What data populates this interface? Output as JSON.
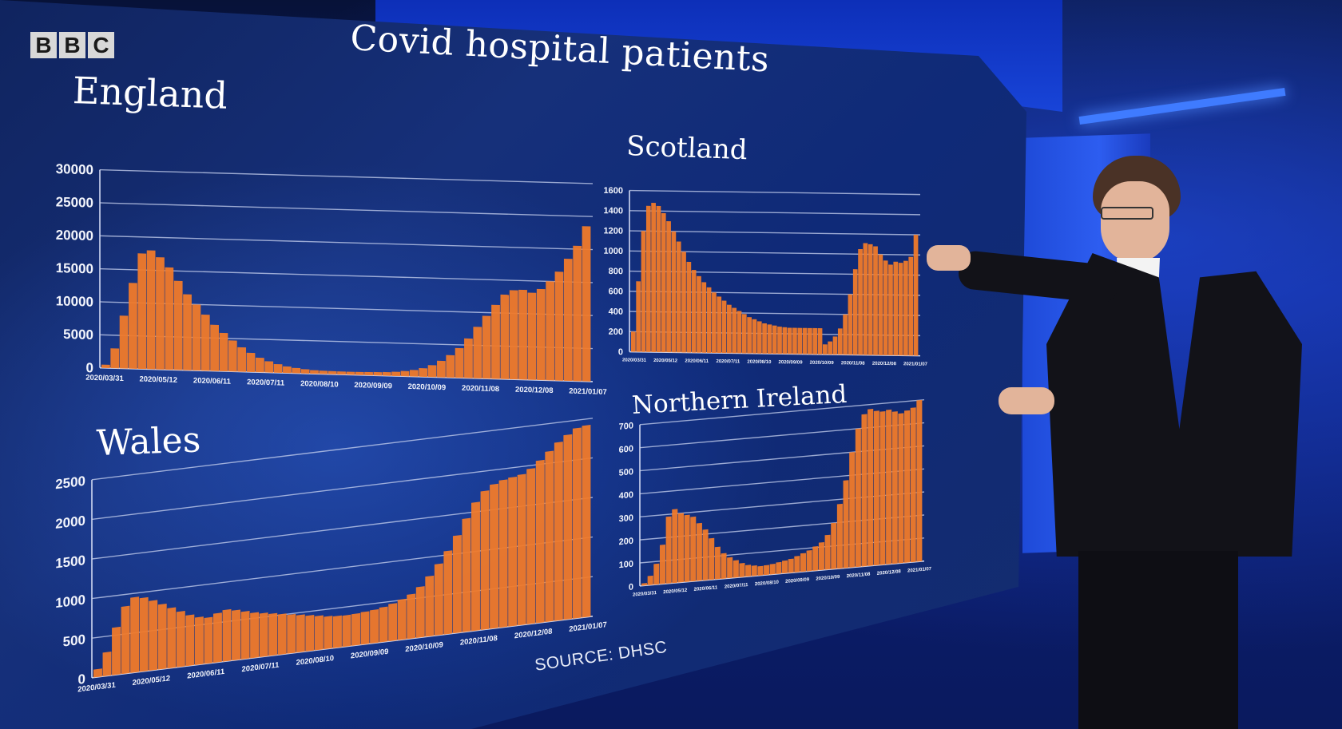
{
  "broadcaster": {
    "logo_letters": [
      "B",
      "B",
      "C"
    ]
  },
  "title": "Covid hospital patients",
  "source": "SOURCE: DHSC",
  "colors": {
    "bars": "#f07a2a",
    "screen_background": "#142c6e",
    "text": "#ffffff"
  },
  "chart_data": [
    {
      "type": "bar",
      "title": "England",
      "x_tick_labels": [
        "2020/03/31",
        "2020/05/12",
        "2020/06/11",
        "2020/07/11",
        "2020/08/10",
        "2020/09/09",
        "2020/10/09",
        "2020/11/08",
        "2020/12/08",
        "2021/01/07"
      ],
      "y_tick_labels": [
        "0",
        "5000",
        "10000",
        "15000",
        "20000",
        "25000",
        "30000"
      ],
      "ylim": [
        0,
        30000
      ],
      "grid": true,
      "series": [
        {
          "values": [
            500,
            3000,
            8000,
            13000,
            17500,
            18000,
            17000,
            15500,
            13500,
            11500,
            10000,
            8500,
            7000,
            5800,
            4700,
            3700,
            2900,
            2200,
            1700,
            1300,
            1000,
            800,
            650,
            550,
            500,
            480,
            470,
            460,
            470,
            490,
            520,
            560,
            650,
            800,
            1000,
            1300,
            1800,
            2500,
            3400,
            4500,
            6000,
            7800,
            9500,
            11200,
            12800,
            13500,
            13600,
            13200,
            13800,
            15000,
            16500,
            18500,
            20500,
            23500
          ]
        }
      ]
    },
    {
      "type": "bar",
      "title": "Scotland",
      "x_tick_labels": [
        "2020/03/31",
        "2020/05/12",
        "2020/06/11",
        "2020/07/11",
        "2020/08/10",
        "2020/09/09",
        "2020/10/09",
        "2020/11/08",
        "2020/12/08",
        "2021/01/07"
      ],
      "y_tick_labels": [
        "0",
        "200",
        "400",
        "600",
        "800",
        "1000",
        "1200",
        "1400",
        "1600"
      ],
      "ylim": [
        0,
        1600
      ],
      "grid": true,
      "series": [
        {
          "values": [
            200,
            700,
            1200,
            1450,
            1480,
            1450,
            1380,
            1300,
            1200,
            1100,
            1000,
            900,
            820,
            760,
            700,
            650,
            600,
            560,
            520,
            480,
            450,
            420,
            390,
            360,
            340,
            320,
            300,
            290,
            280,
            270,
            265,
            260,
            260,
            260,
            260,
            260,
            260,
            260,
            100,
            130,
            180,
            260,
            400,
            600,
            850,
            1050,
            1110,
            1100,
            1080,
            1000,
            940,
            900,
            930,
            920,
            940,
            980,
            1200
          ]
        }
      ]
    },
    {
      "type": "bar",
      "title": "Wales",
      "x_tick_labels": [
        "2020/03/31",
        "2020/05/12",
        "2020/06/11",
        "2020/07/11",
        "2020/08/10",
        "2020/09/09",
        "2020/10/09",
        "2020/11/08",
        "2020/12/08",
        "2021/01/07"
      ],
      "y_tick_labels": [
        "0",
        "500",
        "1000",
        "1500",
        "2000",
        "2500"
      ],
      "ylim": [
        0,
        2500
      ],
      "grid": true,
      "series": [
        {
          "values": [
            100,
            300,
            600,
            850,
            950,
            930,
            880,
            820,
            760,
            700,
            640,
            600,
            580,
            620,
            650,
            630,
            600,
            570,
            550,
            530,
            510,
            490,
            470,
            450,
            430,
            410,
            400,
            395,
            400,
            410,
            420,
            440,
            470,
            510,
            560,
            640,
            760,
            900,
            1050,
            1230,
            1430,
            1620,
            1750,
            1820,
            1860,
            1880,
            1900,
            1960,
            2050,
            2150,
            2250,
            2330,
            2400,
            2420
          ]
        }
      ]
    },
    {
      "type": "bar",
      "title": "Northern Ireland",
      "x_tick_labels": [
        "2020/03/31",
        "2020/05/12",
        "2020/06/11",
        "2020/07/11",
        "2020/08/10",
        "2020/09/09",
        "2020/10/09",
        "2020/11/08",
        "2020/12/08",
        "2021/01/07"
      ],
      "y_tick_labels": [
        "0",
        "100",
        "200",
        "300",
        "400",
        "500",
        "600",
        "700"
      ],
      "ylim": [
        0,
        700
      ],
      "grid": true,
      "series": [
        {
          "values": [
            10,
            40,
            90,
            170,
            290,
            320,
            300,
            290,
            280,
            250,
            220,
            180,
            140,
            110,
            90,
            75,
            60,
            50,
            45,
            40,
            42,
            45,
            50,
            55,
            60,
            70,
            80,
            90,
            105,
            120,
            150,
            200,
            280,
            380,
            500,
            600,
            660,
            680,
            670,
            665,
            670,
            660,
            650,
            660,
            670,
            700
          ]
        }
      ]
    }
  ]
}
